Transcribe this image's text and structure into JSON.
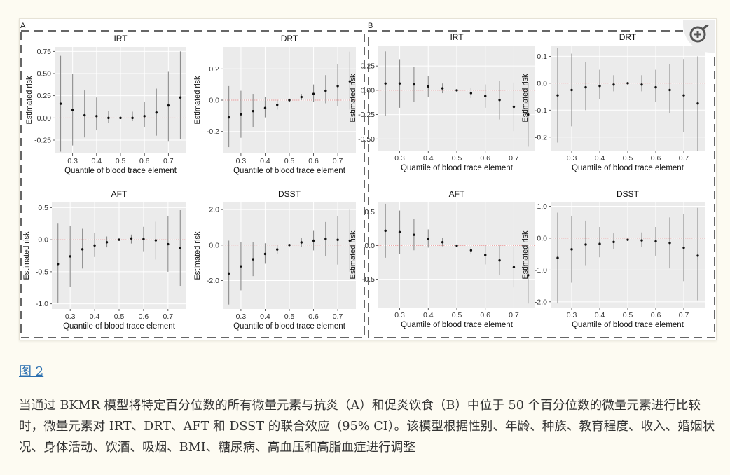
{
  "figure": {
    "panel_labels": [
      "A",
      "B"
    ],
    "link_label": "图 2",
    "caption": "当通过 BKMR 模型将特定百分位数的所有微量元素与抗炎（A）和促炎饮食（B）中位于 50 个百分位数的微量元素进行比较时，微量元素对 IRT、DRT、AFT 和 DSST 的联合效应（95% CI）。该模型根据性别、年龄、种族、教育程度、收入、婚姻状况、身体活动、饮酒、吸烟、BMI、糖尿病、高血压和高脂血症进行调整",
    "zoom_icon": "zoom-in-icon"
  },
  "chart_data": [
    {
      "group": "A",
      "title": "IRT",
      "type": "scatter",
      "xlabel": "Quantile of blood trace element",
      "ylabel": "Estimated risk",
      "xlim": [
        0.225,
        0.775
      ],
      "ylim": [
        -0.4,
        0.8
      ],
      "xticks": [
        0.3,
        0.4,
        0.5,
        0.6,
        0.7
      ],
      "yticks": [
        -0.25,
        0,
        0.25,
        0.5,
        0.75
      ],
      "ytick_labels": [
        "-0.25",
        "0.00",
        "0.25",
        "0.50",
        "0.75"
      ],
      "x": [
        0.25,
        0.3,
        0.35,
        0.4,
        0.45,
        0.5,
        0.55,
        0.6,
        0.65,
        0.7,
        0.75
      ],
      "y": [
        0.16,
        0.09,
        0.03,
        0.02,
        0.0,
        0.0,
        0.0,
        0.02,
        0.06,
        0.14,
        0.23
      ],
      "lower": [
        -0.38,
        -0.31,
        -0.22,
        -0.14,
        -0.06,
        -0.01,
        -0.03,
        -0.1,
        -0.2,
        -0.26,
        -0.24
      ],
      "upper": [
        0.7,
        0.5,
        0.31,
        0.23,
        0.08,
        0.01,
        0.07,
        0.18,
        0.33,
        0.52,
        0.75
      ]
    },
    {
      "group": "A",
      "title": "DRT",
      "type": "scatter",
      "xlabel": "Quantile of blood trace element",
      "ylabel": "Estimated risk",
      "xlim": [
        0.225,
        0.775
      ],
      "ylim": [
        -0.34,
        0.34
      ],
      "xticks": [
        0.3,
        0.4,
        0.5,
        0.6,
        0.7
      ],
      "yticks": [
        -0.2,
        0,
        0.2
      ],
      "ytick_labels": [
        "-0.2",
        "0.0",
        "0.2"
      ],
      "x": [
        0.25,
        0.3,
        0.35,
        0.4,
        0.45,
        0.5,
        0.55,
        0.6,
        0.65,
        0.7,
        0.75
      ],
      "y": [
        -0.11,
        -0.09,
        -0.07,
        -0.05,
        -0.03,
        0.0,
        0.02,
        0.04,
        0.06,
        0.09,
        0.12
      ],
      "lower": [
        -0.3,
        -0.24,
        -0.17,
        -0.11,
        -0.06,
        -0.01,
        0.0,
        -0.01,
        -0.02,
        -0.04,
        -0.06
      ],
      "upper": [
        0.09,
        0.06,
        0.04,
        0.02,
        0.0,
        0.01,
        0.04,
        0.1,
        0.16,
        0.23,
        0.31
      ]
    },
    {
      "group": "A",
      "title": "AFT",
      "type": "scatter",
      "xlabel": "Quantile of blood trace element",
      "ylabel": "Estimated risk",
      "xlim": [
        0.225,
        0.775
      ],
      "ylim": [
        -1.08,
        0.58
      ],
      "xticks": [
        0.3,
        0.4,
        0.5,
        0.6,
        0.7
      ],
      "yticks": [
        -1,
        -0.5,
        0,
        0.5
      ],
      "ytick_labels": [
        "-1.0",
        "-0.5",
        "0.0",
        "0.5"
      ],
      "x": [
        0.25,
        0.3,
        0.35,
        0.4,
        0.45,
        0.5,
        0.55,
        0.6,
        0.65,
        0.7,
        0.75
      ],
      "y": [
        -0.38,
        -0.26,
        -0.15,
        -0.09,
        -0.04,
        0.0,
        0.02,
        0.01,
        -0.01,
        -0.07,
        -0.13
      ],
      "lower": [
        -0.99,
        -0.74,
        -0.45,
        -0.27,
        -0.12,
        -0.01,
        -0.06,
        -0.18,
        -0.31,
        -0.5,
        -0.72
      ],
      "upper": [
        0.25,
        0.22,
        0.17,
        0.11,
        0.05,
        0.01,
        0.08,
        0.2,
        0.28,
        0.37,
        0.46
      ]
    },
    {
      "group": "A",
      "title": "DSST",
      "type": "scatter",
      "xlabel": "Quantile of blood trace element",
      "ylabel": "Estimated risk",
      "xlim": [
        0.225,
        0.775
      ],
      "ylim": [
        -3.6,
        2.4
      ],
      "xticks": [
        0.3,
        0.4,
        0.5,
        0.6,
        0.7
      ],
      "yticks": [
        -2,
        0,
        2
      ],
      "ytick_labels": [
        "-2.0",
        "0.0",
        "2.0"
      ],
      "x": [
        0.25,
        0.3,
        0.35,
        0.4,
        0.45,
        0.5,
        0.55,
        0.6,
        0.65,
        0.7,
        0.75
      ],
      "y": [
        -1.6,
        -1.2,
        -0.8,
        -0.5,
        -0.25,
        0.0,
        0.15,
        0.25,
        0.35,
        0.3,
        0.25
      ],
      "lower": [
        -3.35,
        -2.55,
        -1.75,
        -1.05,
        -0.5,
        -0.02,
        -0.1,
        -0.3,
        -0.6,
        -1.1,
        -1.5
      ],
      "upper": [
        0.25,
        0.15,
        0.15,
        0.1,
        0.0,
        0.02,
        0.4,
        0.8,
        1.3,
        1.65,
        2.0
      ]
    },
    {
      "group": "B",
      "title": "IRT",
      "type": "scatter",
      "xlabel": "Quantile of blood trace element",
      "ylabel": "Estimated risk",
      "xlim": [
        0.225,
        0.775
      ],
      "ylim": [
        -0.62,
        0.46
      ],
      "xticks": [
        0.3,
        0.4,
        0.5,
        0.6,
        0.7
      ],
      "yticks": [
        -0.5,
        -0.25,
        0,
        0.25
      ],
      "ytick_labels": [
        "-0.50",
        "-0.25",
        "0.00",
        "0.25"
      ],
      "x": [
        0.25,
        0.3,
        0.35,
        0.4,
        0.45,
        0.5,
        0.55,
        0.6,
        0.65,
        0.7,
        0.75
      ],
      "y": [
        0.07,
        0.07,
        0.06,
        0.04,
        0.02,
        0.0,
        -0.03,
        -0.06,
        -0.1,
        -0.17,
        -0.25
      ],
      "lower": [
        -0.26,
        -0.18,
        -0.12,
        -0.07,
        -0.03,
        -0.01,
        -0.08,
        -0.18,
        -0.3,
        -0.42,
        -0.58
      ],
      "upper": [
        0.4,
        0.32,
        0.24,
        0.15,
        0.07,
        0.01,
        0.02,
        0.06,
        0.1,
        0.08,
        0.08
      ]
    },
    {
      "group": "B",
      "title": "DRT",
      "type": "scatter",
      "xlabel": "Quantile of blood trace element",
      "ylabel": "Estimated risk",
      "xlim": [
        0.225,
        0.775
      ],
      "ylim": [
        -0.25,
        0.14
      ],
      "xticks": [
        0.3,
        0.4,
        0.5,
        0.6,
        0.7
      ],
      "yticks": [
        -0.2,
        -0.1,
        0,
        0.1
      ],
      "ytick_labels": [
        "-0.2",
        "-0.1",
        "0.0",
        "0.1"
      ],
      "x": [
        0.25,
        0.3,
        0.35,
        0.4,
        0.45,
        0.5,
        0.55,
        0.6,
        0.65,
        0.7,
        0.75
      ],
      "y": [
        -0.045,
        -0.025,
        -0.015,
        -0.01,
        -0.005,
        0.0,
        -0.005,
        -0.015,
        -0.025,
        -0.045,
        -0.075
      ],
      "lower": [
        -0.22,
        -0.16,
        -0.1,
        -0.06,
        -0.03,
        -0.003,
        -0.03,
        -0.07,
        -0.11,
        -0.18,
        -0.25
      ],
      "upper": [
        0.13,
        0.11,
        0.08,
        0.05,
        0.03,
        0.003,
        0.03,
        0.05,
        0.07,
        0.09,
        0.1
      ]
    },
    {
      "group": "B",
      "title": "AFT",
      "type": "scatter",
      "xlabel": "Quantile of blood trace element",
      "ylabel": "Estimated risk",
      "xlim": [
        0.225,
        0.775
      ],
      "ylim": [
        -0.92,
        0.64
      ],
      "xticks": [
        0.3,
        0.4,
        0.5,
        0.6,
        0.7
      ],
      "yticks": [
        -0.5,
        0,
        0.5
      ],
      "ytick_labels": [
        "-0.5",
        "0.0",
        "0.5"
      ],
      "x": [
        0.25,
        0.3,
        0.35,
        0.4,
        0.45,
        0.5,
        0.55,
        0.6,
        0.65,
        0.7,
        0.75
      ],
      "y": [
        0.22,
        0.2,
        0.16,
        0.1,
        0.05,
        0.0,
        -0.07,
        -0.14,
        -0.22,
        -0.32,
        -0.44
      ],
      "lower": [
        -0.18,
        -0.12,
        -0.07,
        -0.03,
        -0.01,
        -0.01,
        -0.13,
        -0.28,
        -0.44,
        -0.62,
        -0.86
      ],
      "upper": [
        0.62,
        0.52,
        0.4,
        0.24,
        0.11,
        0.01,
        -0.02,
        0.0,
        0.0,
        -0.02,
        -0.03
      ]
    },
    {
      "group": "B",
      "title": "DSST",
      "type": "scatter",
      "xlabel": "Quantile of blood trace element",
      "ylabel": "Estimated risk",
      "xlim": [
        0.225,
        0.775
      ],
      "ylim": [
        -2.18,
        1.12
      ],
      "xticks": [
        0.3,
        0.4,
        0.5,
        0.6,
        0.7
      ],
      "yticks": [
        -2,
        -1,
        0,
        1
      ],
      "ytick_labels": [
        "-2.0",
        "-1.0",
        "0.0",
        "1.0"
      ],
      "x": [
        0.25,
        0.3,
        0.35,
        0.4,
        0.45,
        0.5,
        0.55,
        0.6,
        0.65,
        0.7,
        0.75
      ],
      "y": [
        -0.62,
        -0.35,
        -0.2,
        -0.18,
        -0.12,
        -0.05,
        -0.07,
        -0.1,
        -0.15,
        -0.3,
        -0.55
      ],
      "lower": [
        -2.05,
        -1.4,
        -0.85,
        -0.6,
        -0.35,
        -0.07,
        -0.28,
        -0.55,
        -0.95,
        -1.35,
        -1.95
      ],
      "upper": [
        0.8,
        0.7,
        0.55,
        0.35,
        0.15,
        -0.03,
        0.18,
        0.35,
        0.65,
        0.75,
        0.95
      ]
    }
  ]
}
